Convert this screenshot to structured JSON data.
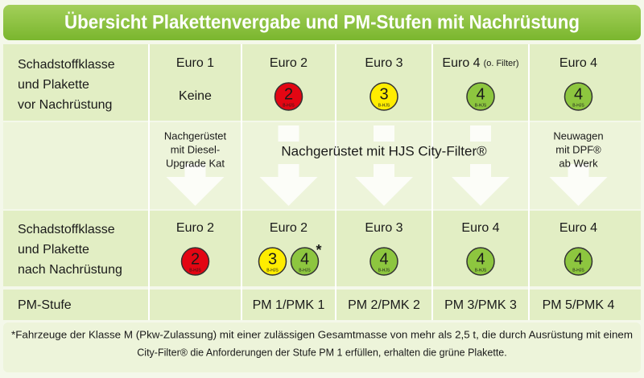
{
  "title": "Übersicht Plakettenvergabe und PM-Stufen mit Nachrüstung",
  "badge_caption": "B-HJS",
  "table": {
    "before": {
      "label": [
        "Schadstoffklasse",
        "und Plakette",
        "vor Nachrüstung"
      ],
      "cells": [
        {
          "class": "Euro 1",
          "text": "Keine"
        },
        {
          "class": "Euro 2",
          "badges": [
            {
              "number": "2",
              "color": "#e30613"
            }
          ]
        },
        {
          "class": "Euro 3",
          "badges": [
            {
              "number": "3",
              "color": "#ffed00"
            }
          ]
        },
        {
          "class": "Euro 4",
          "suffix": "(o. Filter)",
          "badges": [
            {
              "number": "4",
              "color": "#8dc63f"
            }
          ]
        },
        {
          "class": "Euro 4",
          "badges": [
            {
              "number": "4",
              "color": "#8dc63f"
            }
          ]
        }
      ]
    },
    "retrofit": {
      "left": [
        "Nachgerüstet",
        "mit Diesel-",
        "Upgrade Kat"
      ],
      "center": "Nachgerüstet mit HJS City-Filter®",
      "right": [
        "Neuwagen",
        "mit DPF®",
        "ab Werk"
      ]
    },
    "after": {
      "label": [
        "Schadstoffklasse",
        "und Plakette",
        "nach Nachrüstung"
      ],
      "cells": [
        {
          "class": "Euro 2",
          "badges": [
            {
              "number": "2",
              "color": "#e30613"
            }
          ]
        },
        {
          "class": "Euro 2",
          "badges": [
            {
              "number": "3",
              "color": "#ffed00"
            },
            {
              "number": "4",
              "color": "#8dc63f"
            }
          ],
          "marker": "*"
        },
        {
          "class": "Euro 3",
          "badges": [
            {
              "number": "4",
              "color": "#8dc63f"
            }
          ]
        },
        {
          "class": "Euro 4",
          "badges": [
            {
              "number": "4",
              "color": "#8dc63f"
            }
          ]
        },
        {
          "class": "Euro 4",
          "badges": [
            {
              "number": "4",
              "color": "#8dc63f"
            }
          ]
        }
      ]
    },
    "pm": {
      "label": "PM-Stufe",
      "stages": [
        "PM 1/PMK 1",
        "PM 2/PMK 2",
        "PM 3/PMK 3",
        "PM 5/PMK 4"
      ]
    }
  },
  "footnote": [
    "*Fahrzeuge der Klasse M (Pkw-Zulassung) mit einer zulässigen Gesamtmasse von mehr als 2,5 t, die durch Ausrüstung mit einem",
    "City-Filter® die Anforderungen der Stufe PM 1 erfüllen, erhalten die grüne Plakette."
  ]
}
